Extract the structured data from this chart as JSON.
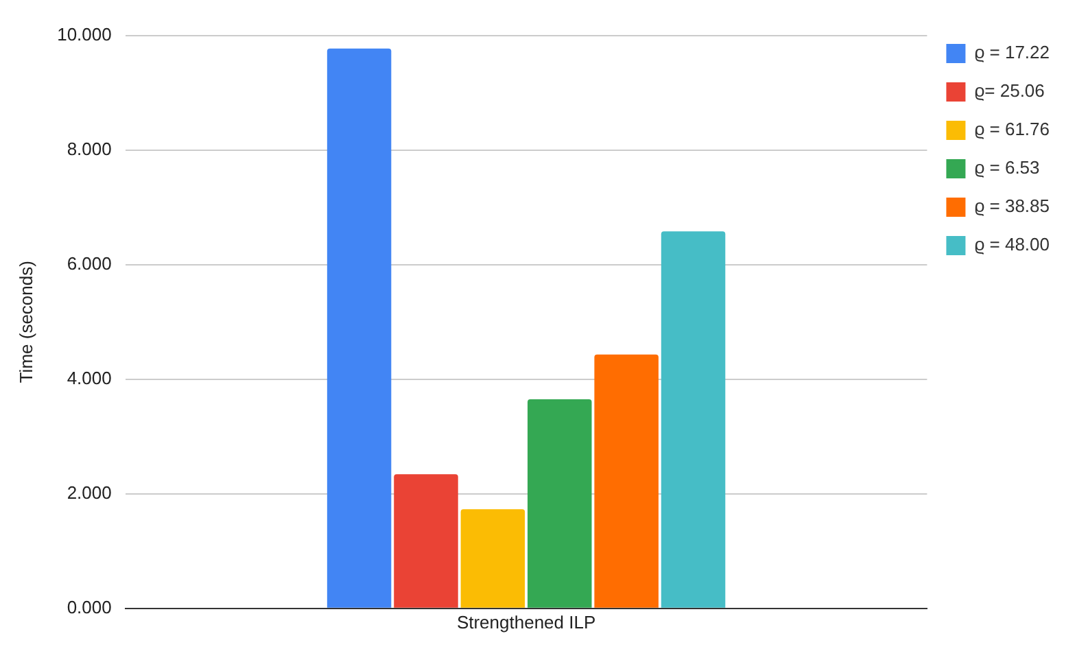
{
  "chart_data": {
    "type": "bar",
    "ylabel": "Time (seconds)",
    "categories": [
      "Strengthened ILP"
    ],
    "series": [
      {
        "name": "ϱ = 17.22",
        "color": "#4285f4",
        "values": [
          9.77
        ]
      },
      {
        "name": "ϱ= 25.06",
        "color": "#ea4335",
        "values": [
          2.34
        ]
      },
      {
        "name": "ϱ = 61.76",
        "color": "#fbbc04",
        "values": [
          1.73
        ]
      },
      {
        "name": "ϱ = 6.53",
        "color": "#34a853",
        "values": [
          3.65
        ]
      },
      {
        "name": "ϱ = 38.85",
        "color": "#ff6d01",
        "values": [
          4.43
        ]
      },
      {
        "name": "ϱ = 48.00",
        "color": "#46bdc6",
        "values": [
          6.58
        ]
      }
    ],
    "ylim": [
      0,
      10
    ],
    "yticks": [
      {
        "value": 0,
        "label": "0.000"
      },
      {
        "value": 2,
        "label": "2.000"
      },
      {
        "value": 4,
        "label": "4.000"
      },
      {
        "value": 6,
        "label": "6.000"
      },
      {
        "value": 8,
        "label": "8.000"
      },
      {
        "value": 10,
        "label": "10.000"
      }
    ],
    "grid": "y",
    "legend": "right"
  }
}
